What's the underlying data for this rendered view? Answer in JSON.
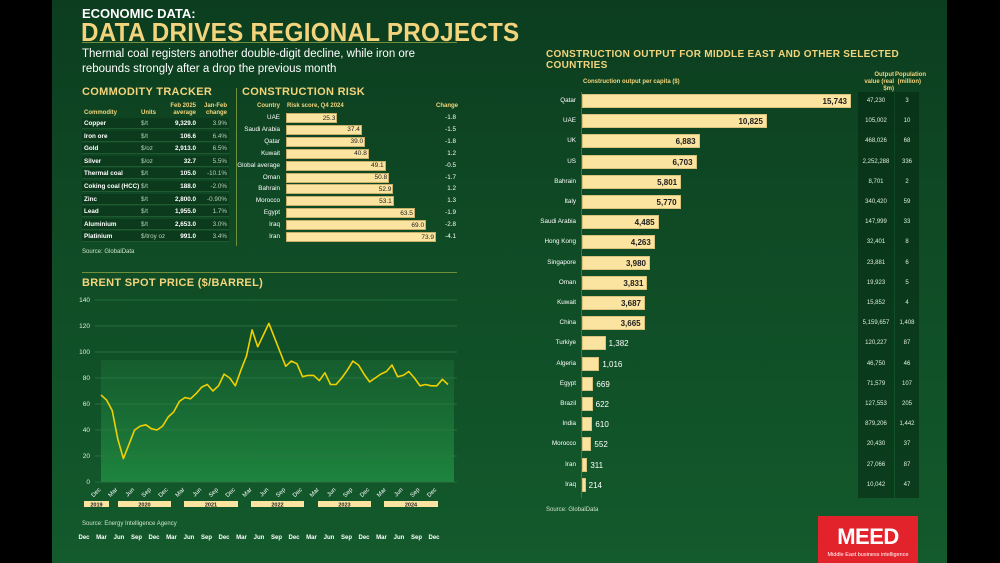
{
  "header": {
    "kicker": "ECONOMIC DATA:",
    "title": "DATA DRIVES REGIONAL PROJECTS",
    "subtitle": "Thermal coal registers another double-digit decline, while iron ore rebounds strongly after a drop the previous month"
  },
  "commodity": {
    "heading": "COMMODITY TRACKER",
    "columns": [
      "Commodity",
      "Units",
      "Feb 2025 average",
      "Jan-Feb change"
    ],
    "rows": [
      [
        "Copper",
        "$/t",
        "9,329.0",
        "3.9%"
      ],
      [
        "Iron ore",
        "$/t",
        "106.6",
        "6.4%"
      ],
      [
        "Gold",
        "$/oz",
        "2,913.0",
        "6.5%"
      ],
      [
        "Silver",
        "$/oz",
        "32.7",
        "5.5%"
      ],
      [
        "Thermal coal",
        "$/t",
        "105.0",
        "-10.1%"
      ],
      [
        "Coking coal (HCC)",
        "$/t",
        "188.0",
        "-2.0%"
      ],
      [
        "Zinc",
        "$/t",
        "2,800.0",
        "-0.90%"
      ],
      [
        "Lead",
        "$/t",
        "1,955.0",
        "1.7%"
      ],
      [
        "Aluminium",
        "$/t",
        "2,653.0",
        "3.0%"
      ],
      [
        "Platinium",
        "$/troy oz",
        "991.0",
        "3.4%"
      ]
    ],
    "source": "Source: GlobalData"
  },
  "risk": {
    "heading": "CONSTRUCTION RISK",
    "columns": [
      "Country",
      "Risk score, Q4 2024",
      "Change"
    ],
    "countries": [
      "UAE",
      "Saudi Arabia",
      "Qatar",
      "Kuwait",
      "Global average",
      "Oman",
      "Bahrain",
      "Morocco",
      "Egypt",
      "Iraq",
      "Iran"
    ],
    "scores": [
      25.3,
      37.4,
      39.0,
      40.8,
      49.1,
      50.8,
      52.9,
      53.1,
      63.5,
      69.0,
      73.9
    ],
    "score_labels": [
      "25.3",
      "37.4",
      "39.0",
      "40.8",
      "49.1",
      "50.8",
      "52.9",
      "53.1",
      "63.5",
      "69.0",
      "73.9"
    ],
    "changes": [
      "-1.8",
      "-1.5",
      "-1.8",
      "1.2",
      "-0.5",
      "-1.7",
      "1.2",
      "1.3",
      "-1.9",
      "-2.8",
      "-4.1"
    ]
  },
  "chart_data": [
    {
      "type": "line",
      "title": "BRENT SPOT PRICE ($/BARREL)",
      "ylim": [
        0,
        140
      ],
      "yticks": [
        "0",
        "20",
        "40",
        "60",
        "80",
        "100",
        "120",
        "140"
      ],
      "grid": true,
      "x_start": "Dec 2019",
      "x_end": "Feb 2025",
      "x_frequency": "monthly",
      "xticks": [
        "Dec",
        "Mar",
        "Jun",
        "Sep",
        "Dec",
        "Mar",
        "Jun",
        "Sep",
        "Dec",
        "Mar",
        "Jun",
        "Sep",
        "Dec",
        "Mar",
        "Jun",
        "Sep",
        "Dec",
        "Mar",
        "Jun",
        "Sep",
        "Dec"
      ],
      "years": [
        "2019",
        "2020",
        "2021",
        "2022",
        "2023",
        "2024"
      ],
      "bottom_ticks": [
        "Dec",
        "Mar",
        "Jun",
        "Sep",
        "Dec",
        "Mar",
        "Jun",
        "Sep",
        "Dec",
        "Mar",
        "Jun",
        "Sep",
        "Dec",
        "Mar",
        "Jun",
        "Sep",
        "Dec",
        "Mar",
        "Jun",
        "Sep",
        "Dec"
      ],
      "values": [
        67,
        63,
        55,
        33,
        18,
        29,
        40,
        43,
        44,
        41,
        40,
        43,
        50,
        54,
        62,
        65,
        64,
        68,
        73,
        75,
        70,
        74,
        83,
        80,
        74,
        86,
        97,
        117,
        104,
        113,
        122,
        111,
        100,
        89,
        93,
        91,
        81,
        82,
        82,
        78,
        84,
        75,
        75,
        80,
        86,
        93,
        90,
        83,
        77,
        80,
        83,
        85,
        90,
        81,
        82,
        85,
        80,
        74,
        75,
        74,
        74,
        79,
        75
      ],
      "line_color": "#f0d000",
      "source": "Source: Energy Intelligence Agency"
    },
    {
      "type": "bar",
      "orientation": "horizontal",
      "title": "CONSTRUCTION OUTPUT FOR MIDDLE EAST AND OTHER SELECTED COUNTRIES",
      "xlabel": "Construction output per capita ($)",
      "categories": [
        "Qatar",
        "UAE",
        "UK",
        "US",
        "Bahrain",
        "Italy",
        "Saudi Arabia",
        "Hong Kong",
        "Singapore",
        "Oman",
        "Kuwait",
        "China",
        "Turkiye",
        "Algeria",
        "Egypt",
        "Brazil",
        "India",
        "Morocco",
        "Iran",
        "Iraq"
      ],
      "values": [
        15743,
        10825,
        6883,
        6703,
        5801,
        5770,
        4485,
        4263,
        3980,
        3831,
        3687,
        3665,
        1382,
        1016,
        669,
        622,
        610,
        552,
        311,
        214
      ],
      "value_labels": [
        "15,743",
        "10,825",
        "6,883",
        "6,703",
        "5,801",
        "5,770",
        "4,485",
        "4,263",
        "3,980",
        "3,831",
        "3,687",
        "3,665",
        "1,382",
        "1,016",
        "669",
        "622",
        "610",
        "552",
        "311",
        "214"
      ],
      "output_header": "Output value (real $m)",
      "output_values": [
        "47,230",
        "105,002",
        "468,026",
        "2,252,288",
        "8,701",
        "340,420",
        "147,999",
        "32,401",
        "23,881",
        "19,923",
        "15,852",
        "5,159,657",
        "120,227",
        "46,750",
        "71,579",
        "127,553",
        "879,206",
        "20,430",
        "27,066",
        "10,042"
      ],
      "population_header": "Population (million)",
      "population": [
        "3",
        "10",
        "68",
        "336",
        "2",
        "59",
        "33",
        "8",
        "6",
        "5",
        "4",
        "1,408",
        "87",
        "46",
        "107",
        "205",
        "1,442",
        "37",
        "87",
        "47"
      ],
      "bar_color": "#fbe3a0",
      "source": "Source: GlobalData"
    }
  ],
  "logo": {
    "name": "MEED",
    "tagline": "Middle East business intelligence",
    "color": "#e3232c"
  }
}
